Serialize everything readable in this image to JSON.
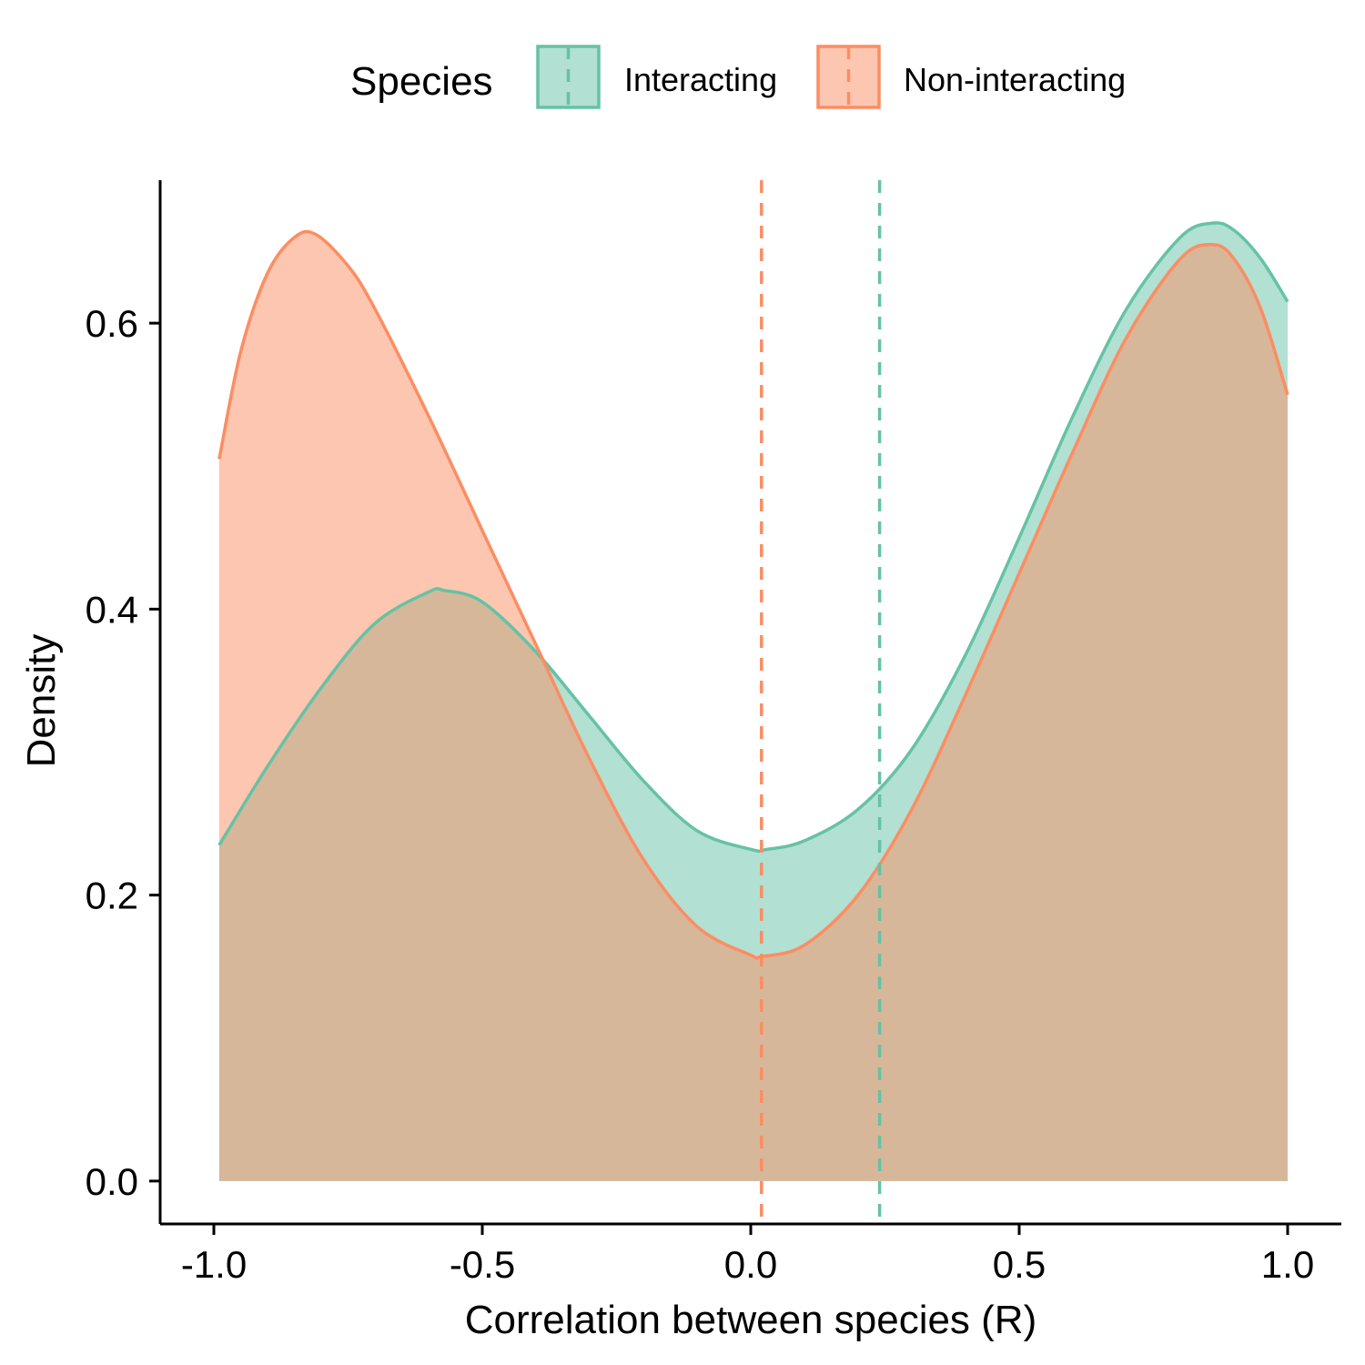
{
  "chart_data": {
    "type": "area",
    "subtype": "density",
    "title": "",
    "xlabel": "Correlation between species (R)",
    "ylabel": "Density",
    "xlim": [
      -1.1,
      1.1
    ],
    "ylim": [
      -0.03,
      0.7
    ],
    "xticks": [
      -1.0,
      -0.5,
      0.0,
      0.5,
      1.0
    ],
    "xtick_labels": [
      "-1.0",
      "-0.5",
      "0.0",
      "0.5",
      "1.0"
    ],
    "yticks": [
      0.0,
      0.2,
      0.4,
      0.6
    ],
    "ytick_labels": [
      "0.0",
      "0.2",
      "0.4",
      "0.6"
    ],
    "grid": false,
    "legend": {
      "title": "Species",
      "placement": "top",
      "entries": [
        "Interacting",
        "Non-interacting"
      ]
    },
    "series": [
      {
        "name": "Interacting",
        "color": "#66c2a5",
        "fill": "#66c2a5",
        "fill_opacity": 0.5,
        "mean_line": 0.24,
        "x": [
          -0.99,
          -0.9,
          -0.8,
          -0.7,
          -0.6,
          -0.57,
          -0.5,
          -0.4,
          -0.3,
          -0.2,
          -0.1,
          0.0,
          0.03,
          0.1,
          0.2,
          0.3,
          0.4,
          0.5,
          0.6,
          0.7,
          0.8,
          0.86,
          0.9,
          0.95,
          1.0
        ],
        "y": [
          0.235,
          0.29,
          0.345,
          0.39,
          0.412,
          0.413,
          0.405,
          0.37,
          0.325,
          0.28,
          0.245,
          0.232,
          0.232,
          0.238,
          0.26,
          0.302,
          0.368,
          0.45,
          0.535,
          0.61,
          0.66,
          0.67,
          0.665,
          0.645,
          0.615
        ]
      },
      {
        "name": "Non-interacting",
        "color": "#fc8d62",
        "fill": "#fc8d62",
        "fill_opacity": 0.5,
        "mean_line": 0.02,
        "x": [
          -0.99,
          -0.95,
          -0.9,
          -0.85,
          -0.81,
          -0.75,
          -0.7,
          -0.6,
          -0.5,
          -0.4,
          -0.3,
          -0.2,
          -0.1,
          0.0,
          0.02,
          0.1,
          0.2,
          0.3,
          0.4,
          0.5,
          0.6,
          0.7,
          0.8,
          0.86,
          0.9,
          0.95,
          1.0
        ],
        "y": [
          0.505,
          0.58,
          0.635,
          0.66,
          0.662,
          0.64,
          0.61,
          0.535,
          0.455,
          0.375,
          0.295,
          0.225,
          0.178,
          0.158,
          0.157,
          0.165,
          0.2,
          0.26,
          0.34,
          0.425,
          0.51,
          0.59,
          0.645,
          0.655,
          0.645,
          0.61,
          0.55
        ]
      }
    ]
  }
}
